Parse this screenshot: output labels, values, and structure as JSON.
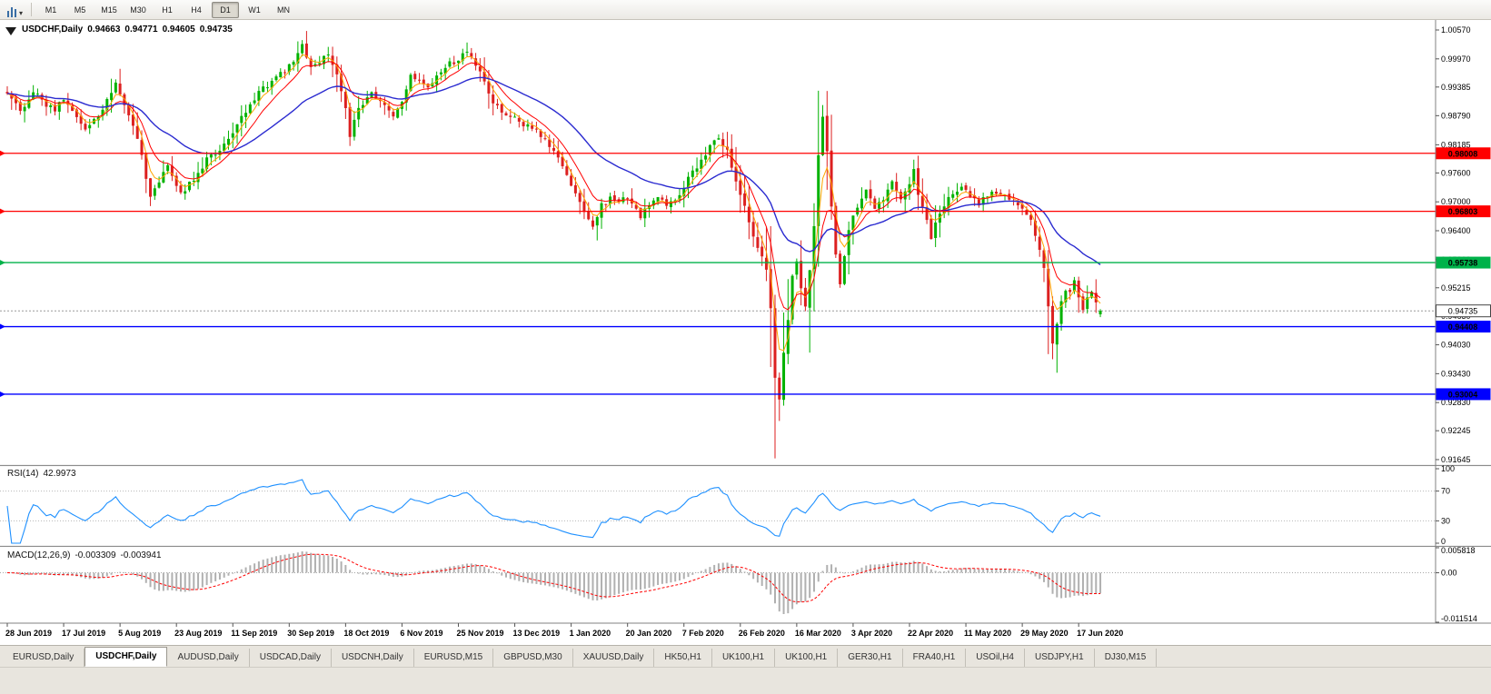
{
  "toolbar": {
    "timeframes": [
      "M1",
      "M5",
      "M15",
      "M30",
      "H1",
      "H4",
      "D1",
      "W1",
      "MN"
    ],
    "active_timeframe": "D1"
  },
  "chart": {
    "type": "candlestick",
    "symbol": "USDCHF,Daily",
    "ohlc": {
      "open": "0.94663",
      "high": "0.94771",
      "low": "0.94605",
      "close": "0.94735"
    },
    "current_price": 0.94735,
    "current_price_label": "0.94735",
    "price_axis": {
      "top": 1.0074,
      "bottom": 0.9155,
      "ticks": [
        "1.00570",
        "0.99970",
        "0.99385",
        "0.98790",
        "0.98185",
        "0.97600",
        "0.97000",
        "0.96400",
        "0.95800",
        "0.95215",
        "0.94630",
        "0.94030",
        "0.93430",
        "0.92830",
        "0.92245",
        "0.91645"
      ]
    },
    "hlines": [
      {
        "value": 0.98008,
        "label": "0.98008",
        "color": "#FF0000"
      },
      {
        "value": 0.96803,
        "label": "0.96803",
        "color": "#FF0000"
      },
      {
        "value": 0.95738,
        "label": "0.95738",
        "color": "#00B24A"
      },
      {
        "value": 0.94408,
        "label": "0.94408",
        "color": "#0000FF"
      },
      {
        "value": 0.93004,
        "label": "0.93004",
        "color": "#0000FF"
      }
    ],
    "candle_colors": {
      "up": "#00B200",
      "down": "#DC2020"
    },
    "ma_lines": [
      {
        "name": "ma-fast",
        "period": 4,
        "color": "#FFA500"
      },
      {
        "name": "ma-mid",
        "period": 9,
        "color": "#FF0000"
      },
      {
        "name": "ma-slow",
        "period": 30,
        "color": "#2B2BD0"
      }
    ],
    "bar_count": 253,
    "label_step": 13,
    "date_labels": [
      "28 Jun 2019",
      "17 Jul 2019",
      "5 Aug 2019",
      "23 Aug 2019",
      "11 Sep 2019",
      "30 Sep 2019",
      "18 Oct 2019",
      "6 Nov 2019",
      "25 Nov 2019",
      "13 Dec 2019",
      "1 Jan 2020",
      "20 Jan 2020",
      "7 Feb 2020",
      "26 Feb 2020",
      "16 Mar 2020",
      "3 Apr 2020",
      "22 Apr 2020",
      "11 May 2020",
      "29 May 2020",
      "17 Jun 2020"
    ],
    "anchors": [
      [
        0,
        0.993
      ],
      [
        2,
        0.99
      ],
      [
        3,
        0.9887
      ],
      [
        5,
        0.9916
      ],
      [
        7,
        0.993
      ],
      [
        9,
        0.9902
      ],
      [
        11,
        0.9893
      ],
      [
        13,
        0.991
      ],
      [
        15,
        0.9885
      ],
      [
        18,
        0.9856
      ],
      [
        20,
        0.987
      ],
      [
        22,
        0.989
      ],
      [
        24,
        0.9928
      ],
      [
        25,
        0.9946
      ],
      [
        27,
        0.9906
      ],
      [
        29,
        0.986
      ],
      [
        31,
        0.98
      ],
      [
        33,
        0.9706
      ],
      [
        35,
        0.9745
      ],
      [
        37,
        0.9772
      ],
      [
        39,
        0.973
      ],
      [
        40,
        0.9716
      ],
      [
        42,
        0.9736
      ],
      [
        44,
        0.976
      ],
      [
        46,
        0.9788
      ],
      [
        49,
        0.981
      ],
      [
        52,
        0.9838
      ],
      [
        55,
        0.989
      ],
      [
        58,
        0.9928
      ],
      [
        61,
        0.995
      ],
      [
        64,
        0.9972
      ],
      [
        66,
        0.9992
      ],
      [
        68,
        1.0022
      ],
      [
        70,
        0.9976
      ],
      [
        72,
        0.9992
      ],
      [
        74,
        1.0006
      ],
      [
        76,
        0.9962
      ],
      [
        78,
        0.989
      ],
      [
        79,
        0.984
      ],
      [
        81,
        0.9896
      ],
      [
        84,
        0.9922
      ],
      [
        87,
        0.99
      ],
      [
        89,
        0.9872
      ],
      [
        91,
        0.9912
      ],
      [
        93,
        0.9962
      ],
      [
        95,
        0.9955
      ],
      [
        97,
        0.994
      ],
      [
        99,
        0.9962
      ],
      [
        101,
        0.998
      ],
      [
        103,
        0.9992
      ],
      [
        106,
        1.0008
      ],
      [
        108,
        0.9988
      ],
      [
        110,
        0.9952
      ],
      [
        112,
        0.9906
      ],
      [
        114,
        0.989
      ],
      [
        117,
        0.9874
      ],
      [
        120,
        0.9856
      ],
      [
        123,
        0.984
      ],
      [
        126,
        0.9806
      ],
      [
        128,
        0.9772
      ],
      [
        130,
        0.9738
      ],
      [
        132,
        0.97
      ],
      [
        134,
        0.9664
      ],
      [
        135,
        0.9652
      ],
      [
        137,
        0.9692
      ],
      [
        139,
        0.9706
      ],
      [
        141,
        0.97
      ],
      [
        143,
        0.9708
      ],
      [
        145,
        0.968
      ],
      [
        146,
        0.9668
      ],
      [
        148,
        0.9696
      ],
      [
        150,
        0.971
      ],
      [
        152,
        0.9692
      ],
      [
        154,
        0.9706
      ],
      [
        156,
        0.9732
      ],
      [
        158,
        0.9762
      ],
      [
        160,
        0.9788
      ],
      [
        162,
        0.9812
      ],
      [
        164,
        0.9832
      ],
      [
        166,
        0.9806
      ],
      [
        168,
        0.9746
      ],
      [
        170,
        0.9692
      ],
      [
        172,
        0.9632
      ],
      [
        174,
        0.9584
      ],
      [
        175,
        0.956
      ],
      [
        176,
        0.948
      ],
      [
        177,
        0.933
      ],
      [
        178,
        0.9292
      ],
      [
        179,
        0.9392
      ],
      [
        180,
        0.9452
      ],
      [
        181,
        0.9542
      ],
      [
        182,
        0.9576
      ],
      [
        183,
        0.9522
      ],
      [
        184,
        0.9482
      ],
      [
        185,
        0.9562
      ],
      [
        186,
        0.9652
      ],
      [
        187,
        0.9792
      ],
      [
        188,
        0.9872
      ],
      [
        189,
        0.9802
      ],
      [
        190,
        0.9692
      ],
      [
        191,
        0.9592
      ],
      [
        192,
        0.9532
      ],
      [
        193,
        0.9592
      ],
      [
        194,
        0.9642
      ],
      [
        196,
        0.9692
      ],
      [
        198,
        0.9722
      ],
      [
        200,
        0.9687
      ],
      [
        202,
        0.9707
      ],
      [
        204,
        0.9737
      ],
      [
        206,
        0.9707
      ],
      [
        208,
        0.9742
      ],
      [
        209,
        0.9772
      ],
      [
        210,
        0.9717
      ],
      [
        212,
        0.9662
      ],
      [
        213,
        0.9627
      ],
      [
        215,
        0.9677
      ],
      [
        217,
        0.9707
      ],
      [
        220,
        0.9732
      ],
      [
        222,
        0.9712
      ],
      [
        224,
        0.9697
      ],
      [
        226,
        0.9712
      ],
      [
        228,
        0.9722
      ],
      [
        230,
        0.9717
      ],
      [
        232,
        0.9697
      ],
      [
        234,
        0.9682
      ],
      [
        236,
        0.9657
      ],
      [
        238,
        0.9602
      ],
      [
        239,
        0.9562
      ],
      [
        240,
        0.9482
      ],
      [
        241,
        0.9407
      ],
      [
        242,
        0.9447
      ],
      [
        243,
        0.9492
      ],
      [
        244,
        0.9517
      ],
      [
        245,
        0.9507
      ],
      [
        246,
        0.9532
      ],
      [
        247,
        0.9502
      ],
      [
        248,
        0.9477
      ],
      [
        249,
        0.9507
      ],
      [
        250,
        0.9512
      ],
      [
        251,
        0.9492
      ],
      [
        252,
        0.94735
      ]
    ],
    "overrides": {
      "68": {
        "h": 1.0036
      },
      "106": {
        "h": 1.0031
      },
      "177": {
        "l": 0.9167
      },
      "188": {
        "h": 0.9901
      },
      "241": {
        "l": 0.9373
      },
      "252": {
        "o": 0.94663,
        "h": 0.94771,
        "l": 0.94605,
        "c": 0.94735
      }
    }
  },
  "indicators": {
    "rsi": {
      "label": "RSI(14)",
      "value": "42.9973",
      "color": "#1E90FF",
      "levels": [
        70,
        30
      ],
      "axis_labels": [
        "100",
        "70",
        "30",
        "0"
      ]
    },
    "macd": {
      "label": "MACD(12,26,9)",
      "value_main": "-0.003309",
      "value_signal": "-0.003941",
      "hist_color": "#B0B0B0",
      "signal_color": "#FF0000",
      "axis_labels": [
        "0.005818",
        "0.00",
        "-0.011514"
      ],
      "axis_max": 0.005818,
      "axis_min": -0.011514
    }
  },
  "tabs": {
    "items": [
      "EURUSD,Daily",
      "USDCHF,Daily",
      "AUDUSD,Daily",
      "USDCAD,Daily",
      "USDCNH,Daily",
      "EURUSD,M15",
      "GBPUSD,M30",
      "XAUUSD,Daily",
      "HK50,H1",
      "UK100,H1",
      "UK100,H1",
      "GER30,H1",
      "FRA40,H1",
      "USOil,H4",
      "USDJPY,H1",
      "DJ30,M15"
    ],
    "active_index": 1
  }
}
